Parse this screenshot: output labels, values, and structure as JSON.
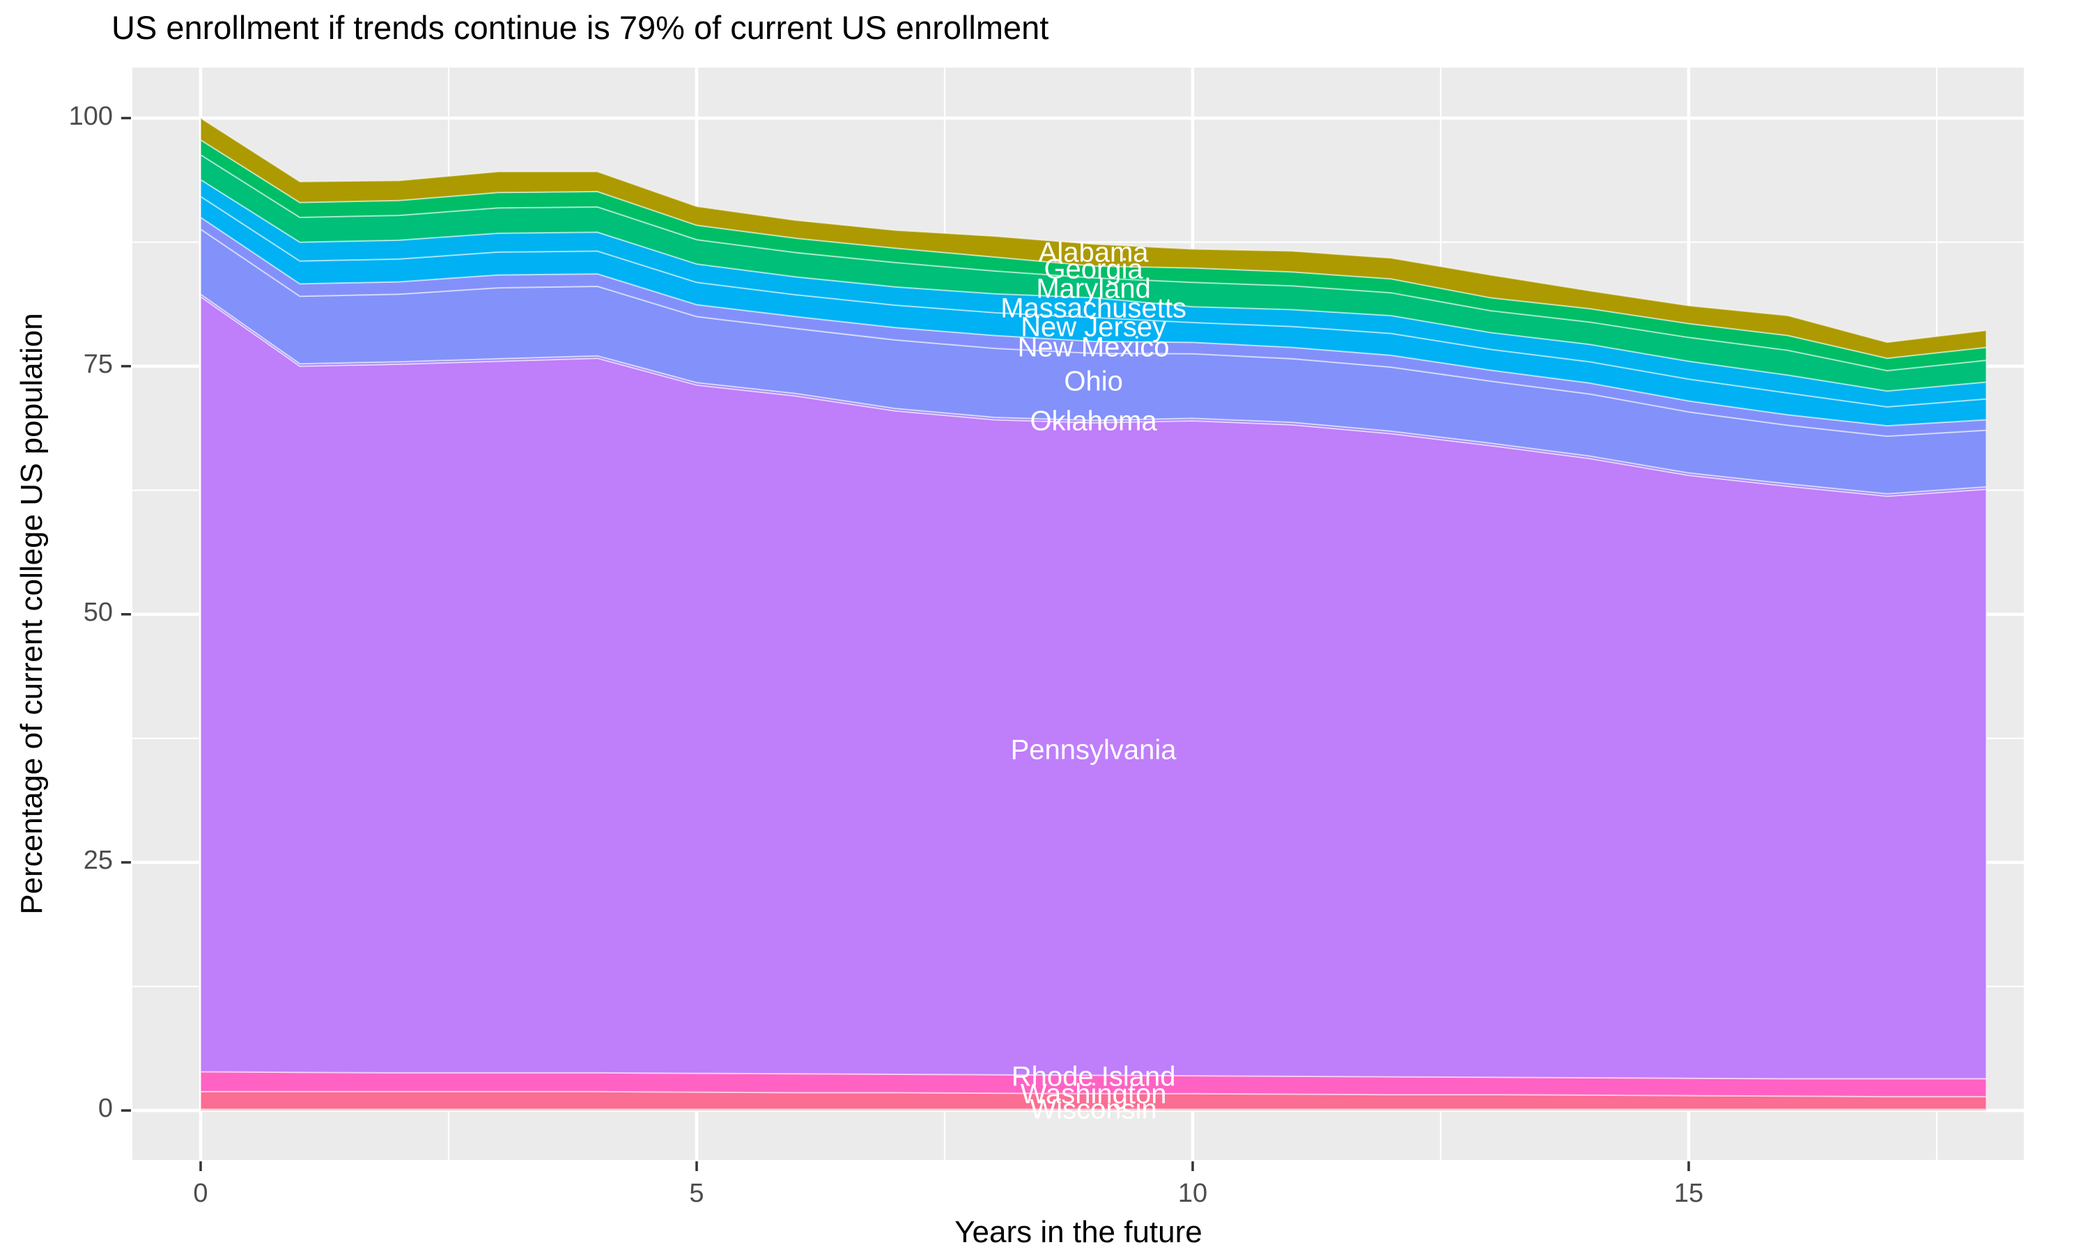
{
  "figure": {
    "title": "US enrollment if trends continue is 79% of current US enrollment"
  },
  "chart_data": {
    "type": "area",
    "stacked": true,
    "title": "US enrollment if trends continue is 79% of current US enrollment",
    "xlabel": "Years in the future",
    "ylabel": "Percentage of current college US population",
    "x": [
      0,
      1,
      2,
      3,
      4,
      5,
      6,
      7,
      8,
      9,
      10,
      11,
      12,
      13,
      14,
      15,
      16,
      17,
      18
    ],
    "xlim": [
      0,
      18
    ],
    "ylim": [
      0,
      100
    ],
    "x_ticks": [
      "0",
      "5",
      "10",
      "15"
    ],
    "x_tick_values": [
      0,
      5,
      10,
      15
    ],
    "x_minor_values": [
      2.5,
      7.5,
      12.5,
      17.5
    ],
    "y_ticks": [
      "0",
      "25",
      "50",
      "75",
      "100"
    ],
    "y_tick_values": [
      0,
      25,
      50,
      75,
      100
    ],
    "y_minor_values": [
      12.5,
      37.5,
      62.5,
      87.5
    ],
    "grid": true,
    "legend": "none",
    "panel_bg": "#EBEBEB",
    "grid_color": "#FFFFFF",
    "tick_color": "#333333",
    "tick_label_color": "#4D4D4D",
    "label_x": 9,
    "label_color": "#FFFFFF",
    "total_at_start_pct": 100,
    "total_at_end_pct": 79,
    "series": [
      {
        "name": "Alabama",
        "color": "#AC9A00",
        "label_y": 86.4,
        "values": [
          2.2,
          2.1,
          2.0,
          2.1,
          2.0,
          1.9,
          1.8,
          1.8,
          2.1,
          2.2,
          1.9,
          2.1,
          2.1,
          2.3,
          1.8,
          1.8,
          2.0,
          1.6,
          1.7
        ]
      },
      {
        "name": "Georgia",
        "color": "#00BE66",
        "label_y": 84.7,
        "values": [
          1.5,
          1.5,
          1.5,
          1.55,
          1.55,
          1.45,
          1.45,
          1.45,
          1.4,
          1.2,
          1.45,
          1.4,
          1.4,
          1.3,
          1.35,
          1.4,
          1.5,
          1.25,
          1.3
        ]
      },
      {
        "name": "Maryland",
        "color": "#00BF78",
        "label_y": 82.8,
        "values": [
          2.5,
          2.5,
          2.5,
          2.55,
          2.55,
          2.45,
          2.45,
          2.45,
          2.3,
          2.0,
          2.45,
          2.4,
          2.3,
          2.2,
          2.25,
          2.4,
          2.5,
          2.05,
          2.2
        ]
      },
      {
        "name": "Massachusetts",
        "color": "#00B2F0",
        "label_y": 80.8,
        "values": [
          1.7,
          1.9,
          1.9,
          1.9,
          1.9,
          1.85,
          1.8,
          1.85,
          1.9,
          2.0,
          1.6,
          1.7,
          1.8,
          1.7,
          1.75,
          1.8,
          1.8,
          1.6,
          1.7
        ]
      },
      {
        "name": "New Jersey",
        "color": "#00B1F4",
        "label_y": 78.9,
        "values": [
          2.1,
          2.3,
          2.3,
          2.3,
          2.3,
          2.25,
          2.2,
          2.25,
          2.3,
          2.4,
          2.0,
          2.1,
          2.2,
          2.1,
          2.15,
          2.2,
          2.2,
          1.9,
          2.1
        ]
      },
      {
        "name": "New Mexico",
        "color": "#8490FA",
        "label_y": 76.9,
        "values": [
          1.2,
          1.25,
          1.25,
          1.3,
          1.25,
          1.2,
          1.2,
          1.25,
          1.3,
          1.2,
          1.15,
          1.15,
          1.2,
          1.1,
          1.1,
          1.1,
          1.05,
          1.05,
          1.05
        ]
      },
      {
        "name": "Ohio",
        "color": "#8292FA",
        "label_y": 73.4,
        "values": [
          6.55,
          6.8,
          6.8,
          7.15,
          7.0,
          6.65,
          6.55,
          6.9,
          6.95,
          6.75,
          6.5,
          6.4,
          6.45,
          6.25,
          6.25,
          6.15,
          5.9,
          5.8,
          5.7
        ]
      },
      {
        "name": "Oklahoma",
        "color": "#A383FD",
        "label_y": 69.4,
        "values": [
          0.25,
          0.25,
          0.25,
          0.25,
          0.25,
          0.25,
          0.25,
          0.25,
          0.25,
          0.25,
          0.25,
          0.25,
          0.25,
          0.25,
          0.25,
          0.25,
          0.25,
          0.25,
          0.25
        ]
      },
      {
        "name": "Pennsylvania",
        "color": "#BF7EFA",
        "label_y": 36.3,
        "values": [
          78.1,
          71.15,
          71.4,
          71.7,
          72.0,
          69.35,
          68.3,
          66.85,
          66.0,
          65.75,
          66.0,
          65.65,
          64.8,
          63.65,
          62.4,
          60.75,
          59.7,
          58.7,
          59.4
        ]
      },
      {
        "name": "Rhode Island",
        "color": "#FF62C3",
        "label_y": 3.4,
        "values": [
          2.0,
          1.95,
          1.9,
          1.9,
          1.9,
          1.9,
          1.9,
          1.85,
          1.85,
          1.85,
          1.8,
          1.8,
          1.8,
          1.75,
          1.75,
          1.75,
          1.75,
          1.8,
          1.8
        ]
      },
      {
        "name": "Washington",
        "color": "#FB6D92",
        "label_y": 1.6,
        "values": [
          1.78,
          1.78,
          1.78,
          1.78,
          1.78,
          1.73,
          1.68,
          1.68,
          1.63,
          1.58,
          1.58,
          1.53,
          1.48,
          1.48,
          1.43,
          1.38,
          1.33,
          1.28,
          1.28
        ]
      },
      {
        "name": "Wisconsin",
        "color": "#F8766D",
        "label_y": 0.05,
        "values": [
          0.12,
          0.12,
          0.12,
          0.12,
          0.12,
          0.12,
          0.12,
          0.12,
          0.12,
          0.12,
          0.12,
          0.12,
          0.12,
          0.12,
          0.12,
          0.12,
          0.12,
          0.12,
          0.12
        ]
      }
    ]
  }
}
